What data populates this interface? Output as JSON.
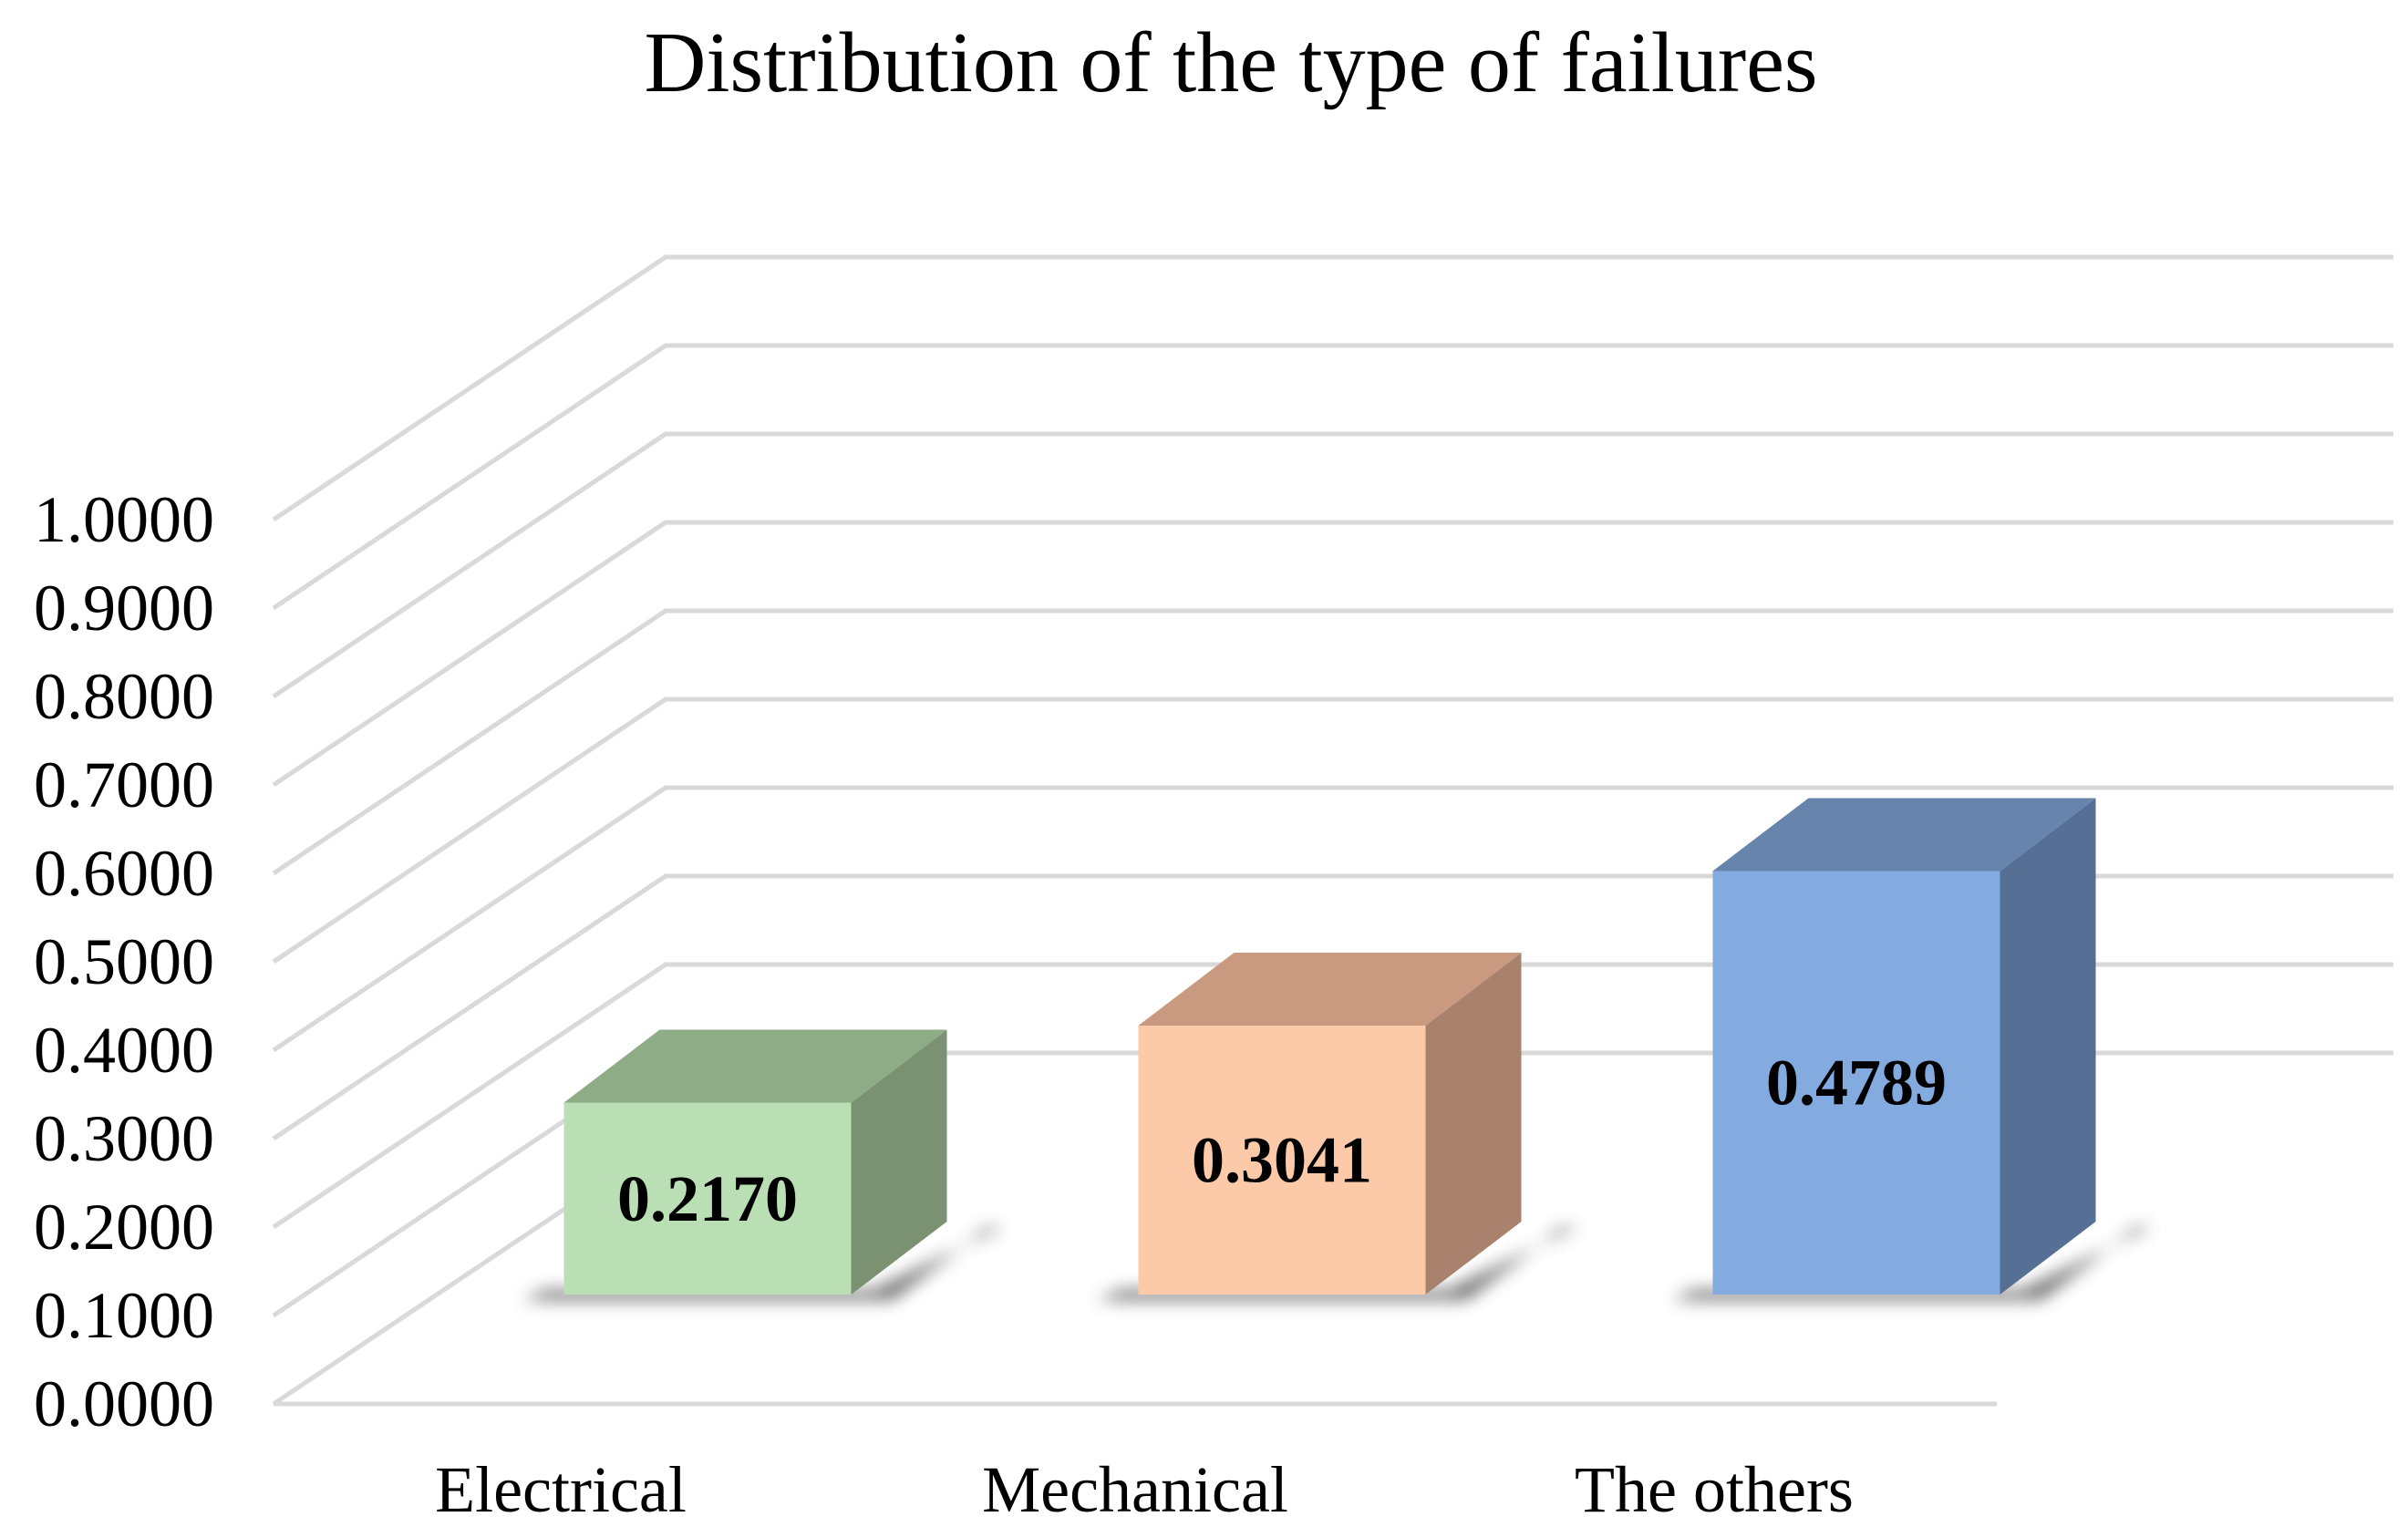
{
  "chart_data": {
    "type": "bar",
    "title": "Distribution of the type of failures",
    "categories": [
      "Electrical",
      "Mechanical",
      "The others"
    ],
    "values": [
      0.217,
      0.3041,
      0.4789
    ],
    "value_labels": [
      "0.2170",
      "0.3041",
      "0.4789"
    ],
    "ylim": [
      0,
      1
    ],
    "y_ticks": [
      "0.0000",
      "0.1000",
      "0.2000",
      "0.3000",
      "0.4000",
      "0.5000",
      "0.6000",
      "0.7000",
      "0.8000",
      "0.9000",
      "1.0000"
    ],
    "grid": true,
    "style": "3d-column",
    "colors": {
      "front": [
        "#badfb4",
        "#fccaa8",
        "#83abdf"
      ],
      "top": [
        "#8eac86",
        "#c99980",
        "#6684ac"
      ],
      "side": [
        "#7a9172",
        "#a9826d",
        "#566f94"
      ],
      "shadow": "#555555",
      "grid": "#d9d9d9"
    }
  }
}
